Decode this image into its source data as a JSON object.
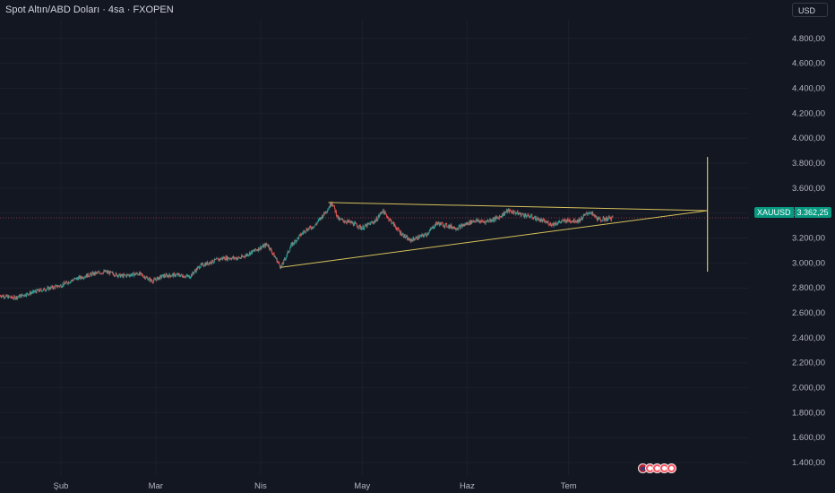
{
  "header": {
    "title": "Spot Altın/ABD Doları · 4sa · FXOPEN",
    "currency_button": "USD"
  },
  "price_tag": {
    "symbol": "XAUUSD",
    "value": "3.362,25"
  },
  "colors": {
    "background": "#131722",
    "up": "#26a69a",
    "down": "#ef5350",
    "trendline": "#d6c15a",
    "price_tag": "#089981",
    "last_price_line": "#f7525f"
  },
  "chart_data": {
    "type": "candlestick",
    "ylim": [
      1300,
      4950
    ],
    "y_ticks": [
      {
        "value": 1400,
        "label": "1.400,00"
      },
      {
        "value": 1600,
        "label": "1.600,00"
      },
      {
        "value": 1800,
        "label": "1.800,00"
      },
      {
        "value": 2000,
        "label": "2.000,00"
      },
      {
        "value": 2200,
        "label": "2.200,00"
      },
      {
        "value": 2400,
        "label": "2.400,00"
      },
      {
        "value": 2600,
        "label": "2.600,00"
      },
      {
        "value": 2800,
        "label": "2.800,00"
      },
      {
        "value": 3000,
        "label": "3.000,00"
      },
      {
        "value": 3200,
        "label": "3.200,00"
      },
      {
        "value": 3400,
        "label": "3.400,00"
      },
      {
        "value": 3600,
        "label": "3.600,00"
      },
      {
        "value": 3800,
        "label": "3.800,00"
      },
      {
        "value": 4000,
        "label": "4.000,00"
      },
      {
        "value": 4200,
        "label": "4.200,00"
      },
      {
        "value": 4400,
        "label": "4.400,00"
      },
      {
        "value": 4600,
        "label": "4.600,00"
      },
      {
        "value": 4800,
        "label": "4.800,00"
      }
    ],
    "x_ticks": [
      {
        "date": "2025-02-01",
        "label": "Şub"
      },
      {
        "date": "2025-03-01",
        "label": "Mar"
      },
      {
        "date": "2025-04-01",
        "label": "Nis"
      },
      {
        "date": "2025-05-01",
        "label": "May"
      },
      {
        "date": "2025-06-01",
        "label": "Haz"
      },
      {
        "date": "2025-07-01",
        "label": "Tem"
      }
    ],
    "xlim": [
      "2025-01-14",
      "2025-08-23"
    ],
    "last_price": 3362.25,
    "price_path": [
      [
        "2025-01-14",
        2740
      ],
      [
        "2025-01-18",
        2720
      ],
      [
        "2025-01-25",
        2775
      ],
      [
        "2025-02-01",
        2820
      ],
      [
        "2025-02-05",
        2870
      ],
      [
        "2025-02-10",
        2910
      ],
      [
        "2025-02-14",
        2930
      ],
      [
        "2025-02-19",
        2895
      ],
      [
        "2025-02-24",
        2915
      ],
      [
        "2025-02-28",
        2855
      ],
      [
        "2025-03-03",
        2895
      ],
      [
        "2025-03-07",
        2905
      ],
      [
        "2025-03-11",
        2890
      ],
      [
        "2025-03-14",
        2975
      ],
      [
        "2025-03-18",
        3015
      ],
      [
        "2025-03-21",
        3040
      ],
      [
        "2025-03-26",
        3040
      ],
      [
        "2025-03-31",
        3110
      ],
      [
        "2025-04-03",
        3150
      ],
      [
        "2025-04-07",
        2965
      ],
      [
        "2025-04-10",
        3140
      ],
      [
        "2025-04-14",
        3260
      ],
      [
        "2025-04-17",
        3300
      ],
      [
        "2025-04-21",
        3440
      ],
      [
        "2025-04-22",
        3490
      ],
      [
        "2025-04-24",
        3350
      ],
      [
        "2025-04-28",
        3320
      ],
      [
        "2025-05-01",
        3280
      ],
      [
        "2025-05-05",
        3340
      ],
      [
        "2025-05-07",
        3420
      ],
      [
        "2025-05-12",
        3250
      ],
      [
        "2025-05-15",
        3180
      ],
      [
        "2025-05-20",
        3230
      ],
      [
        "2025-05-23",
        3320
      ],
      [
        "2025-05-29",
        3280
      ],
      [
        "2025-06-03",
        3340
      ],
      [
        "2025-06-06",
        3330
      ],
      [
        "2025-06-10",
        3360
      ],
      [
        "2025-06-13",
        3420
      ],
      [
        "2025-06-17",
        3390
      ],
      [
        "2025-06-20",
        3370
      ],
      [
        "2025-06-24",
        3330
      ],
      [
        "2025-06-26",
        3310
      ],
      [
        "2025-06-30",
        3340
      ],
      [
        "2025-07-04",
        3340
      ],
      [
        "2025-07-07",
        3410
      ],
      [
        "2025-07-10",
        3345
      ],
      [
        "2025-07-14",
        3362
      ]
    ],
    "drawings": [
      {
        "type": "trendline",
        "from": [
          "2025-04-21",
          3485
        ],
        "to": [
          "2025-08-11",
          3420
        ]
      },
      {
        "type": "trendline",
        "from": [
          "2025-04-07",
          2965
        ],
        "to": [
          "2025-08-11",
          3420
        ]
      },
      {
        "type": "vertical-line",
        "date": "2025-08-11",
        "from": 2930,
        "to": 3850
      }
    ]
  },
  "events": {
    "icons": [
      "us-flag-icon",
      "event-icon",
      "event-icon",
      "event-icon",
      "event-icon"
    ]
  }
}
